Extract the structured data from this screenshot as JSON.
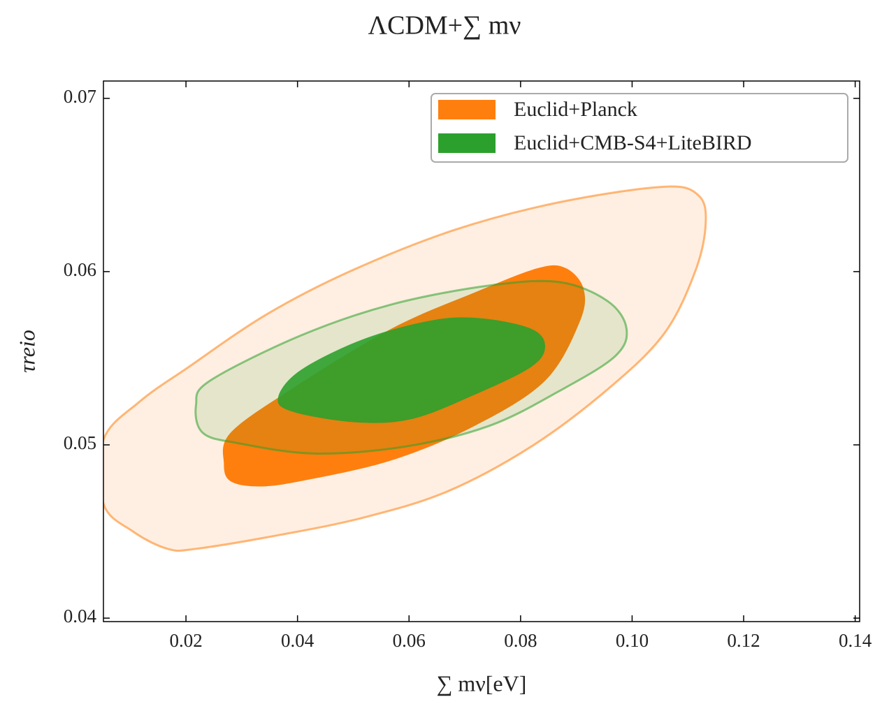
{
  "chart_data": {
    "type": "contour",
    "title": "ΛCDM+∑ mν",
    "x_label": "∑ mν[eV]",
    "y_label": "τreio",
    "xlim": [
      0.0052,
      0.1408
    ],
    "ylim": [
      0.0398,
      0.071
    ],
    "xticks": [
      0.02,
      0.04,
      0.06,
      0.08,
      {
        "value": 0.1,
        "label": "0.10"
      },
      0.12,
      0.14
    ],
    "yticks": [
      0.04,
      0.05,
      0.06,
      0.07
    ],
    "legend": "upper right",
    "series": [
      {
        "name": "Euclid+Planck",
        "color": "#ff7f0e",
        "contours": [
          {
            "x": [
              0.0052,
              0.0117,
              0.0205,
              0.0343,
              0.0493,
              0.0681,
              0.0869,
              0.1057,
              0.1119,
              0.1132,
              0.1113,
              0.1057,
              0.0956,
              0.0819,
              0.0668,
              0.0518,
              0.0368,
              0.0218,
              0.0167,
              0.0105,
              0.0052
            ],
            "y": [
              0.0503,
              0.0525,
              0.0545,
              0.0575,
              0.06,
              0.0624,
              0.064,
              0.0649,
              0.0644,
              0.0628,
              0.06,
              0.0564,
              0.0532,
              0.0499,
              0.0473,
              0.0458,
              0.0448,
              0.044,
              0.044,
              0.045,
              0.0466
            ]
          },
          {
            "x": [
              0.0268,
              0.028,
              0.0393,
              0.0568,
              0.0718,
              0.0831,
              0.0881,
              0.0913,
              0.0906,
              0.0844,
              0.0718,
              0.0568,
              0.0405,
              0.033,
              0.028
            ],
            "y": [
              0.0489,
              0.0507,
              0.0533,
              0.0567,
              0.0588,
              0.0602,
              0.0602,
              0.059,
              0.0571,
              0.0537,
              0.0511,
              0.0491,
              0.0479,
              0.0476,
              0.0479
            ]
          }
        ]
      },
      {
        "name": "Euclid+CMB-S4+LiteBIRD",
        "color": "#2ca02c",
        "contours": [
          {
            "x": [
              0.0218,
              0.0243,
              0.0405,
              0.0568,
              0.0744,
              0.0869,
              0.0956,
              0.099,
              0.0969,
              0.0869,
              0.0744,
              0.0593,
              0.043,
              0.0293,
              0.023
            ],
            "y": [
              0.0523,
              0.0537,
              0.0563,
              0.0581,
              0.0592,
              0.0594,
              0.0583,
              0.0567,
              0.0551,
              0.0531,
              0.0511,
              0.0499,
              0.0495,
              0.0501,
              0.0507
            ]
          },
          {
            "x": [
              0.0365,
              0.0405,
              0.0518,
              0.0643,
              0.0731,
              0.0819,
              0.0844,
              0.0819,
              0.0718,
              0.0606,
              0.0506,
              0.0393
            ],
            "y": [
              0.0527,
              0.0543,
              0.0561,
              0.0572,
              0.0573,
              0.0567,
              0.0557,
              0.0545,
              0.0529,
              0.0515,
              0.0513,
              0.0519
            ]
          }
        ]
      }
    ]
  }
}
